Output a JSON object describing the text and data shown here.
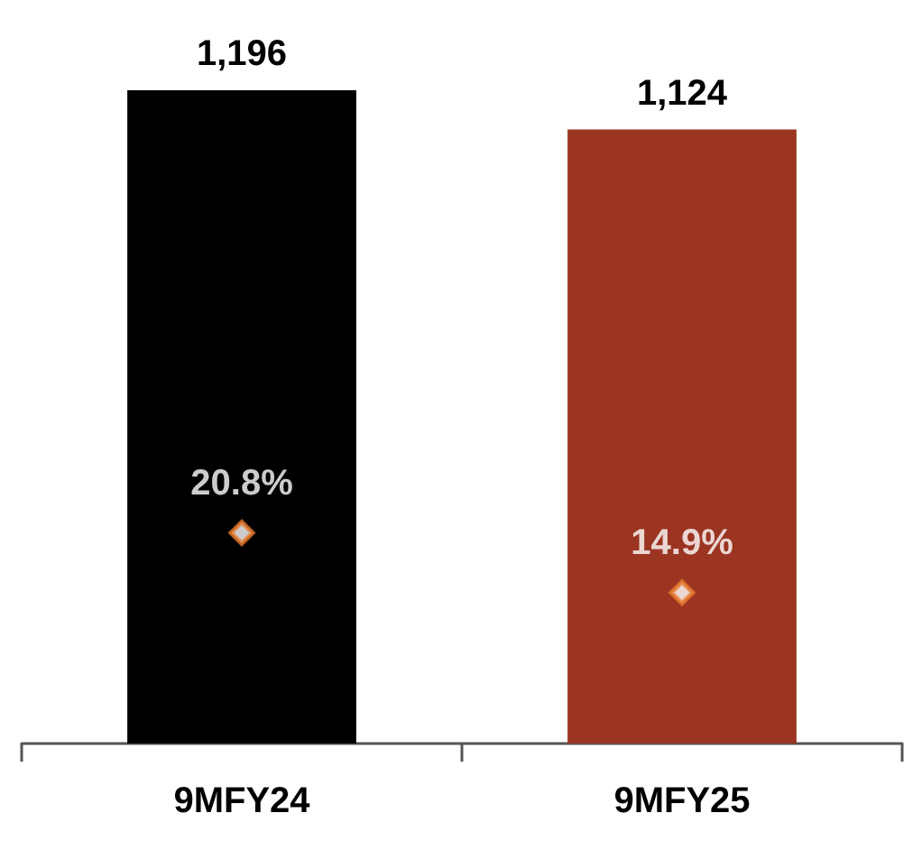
{
  "chart_data": {
    "type": "bar",
    "categories": [
      "9MFY24",
      "9MFY25"
    ],
    "tick_labels": "x",
    "grid": false,
    "series": [
      {
        "colors": [
          "#000000",
          "#9b3522"
        ],
        "values": [
          1196,
          1124
        ],
        "value_labels": [
          "1,196",
          "1,124"
        ]
      },
      {
        "type": "scatter",
        "axis": "y2",
        "marker": "diamond",
        "color": "#e8792a",
        "values": [
          20.8,
          14.9
        ],
        "value_labels": [
          "20.8%",
          "14.9%"
        ]
      }
    ]
  }
}
